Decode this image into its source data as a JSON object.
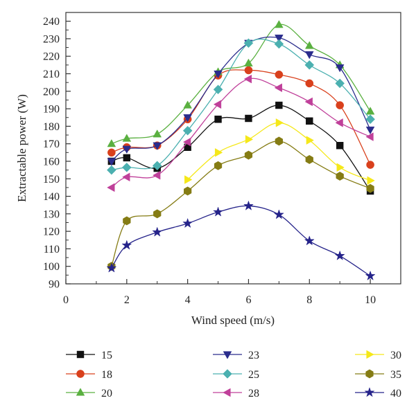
{
  "chart_data": {
    "type": "line",
    "title": "",
    "xlabel": "Wind speed (m/s)",
    "ylabel": "Extractable power (W)",
    "xlim": [
      0,
      11
    ],
    "ylim": [
      90,
      245
    ],
    "x_ticks": [
      "0",
      "2",
      "4",
      "6",
      "8",
      "10"
    ],
    "y_ticks": [
      "90",
      "100",
      "110",
      "120",
      "130",
      "140",
      "150",
      "160",
      "170",
      "180",
      "190",
      "200",
      "210",
      "220",
      "230",
      "240"
    ],
    "grid": false,
    "legend_placement": "bottom",
    "x": [
      1.5,
      2,
      3,
      4,
      5,
      6,
      7,
      8,
      9,
      10
    ],
    "series": [
      {
        "name": "15",
        "color": "#111111",
        "marker": "square",
        "values": [
          160,
          162,
          156,
          168,
          184,
          184.5,
          192,
          183,
          169,
          143
        ]
      },
      {
        "name": "18",
        "color": "#d9401c",
        "marker": "circle",
        "values": [
          165,
          168,
          169,
          184,
          209,
          212,
          209.5,
          204.5,
          192,
          158
        ]
      },
      {
        "name": "20",
        "color": "#5ab040",
        "marker": "triangle-up",
        "values": [
          170,
          173,
          175.5,
          192,
          211,
          216,
          238,
          226,
          215,
          188.5
        ]
      },
      {
        "name": "23",
        "color": "#2a2c8c",
        "marker": "triangle-down",
        "values": [
          160,
          167,
          169,
          185,
          210,
          227.5,
          230.5,
          221,
          213.5,
          178
        ]
      },
      {
        "name": "25",
        "color": "#4bb0b0",
        "marker": "diamond",
        "values": [
          155,
          156.5,
          157.5,
          177.5,
          201,
          227.5,
          227,
          215,
          204.5,
          184
        ]
      },
      {
        "name": "28",
        "color": "#c0409a",
        "marker": "triangle-left",
        "values": [
          145,
          151,
          152,
          171,
          192.5,
          207,
          202,
          194,
          182,
          174
        ]
      },
      {
        "name": "30",
        "color": "#f5e81a",
        "marker": "triangle-right",
        "values": [
          null,
          null,
          null,
          149.5,
          165,
          172.5,
          182,
          172,
          156.5,
          149
        ]
      },
      {
        "name": "35",
        "color": "#857c14",
        "marker": "hexagon",
        "values": [
          100,
          126,
          130,
          143,
          157.5,
          163.5,
          171.5,
          161,
          151.5,
          144.5
        ]
      },
      {
        "name": "40",
        "color": "#25238a",
        "marker": "star",
        "values": [
          99,
          112,
          119.5,
          124.5,
          131,
          134.5,
          129.5,
          114.5,
          106,
          94.5
        ]
      }
    ]
  }
}
